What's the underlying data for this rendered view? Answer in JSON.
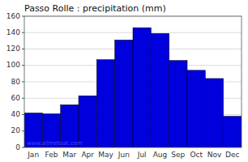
{
  "chart_data": {
    "type": "bar",
    "title": "Passo Rolle : precipitation (mm)",
    "categories": [
      "Jan",
      "Feb",
      "Mar",
      "Apr",
      "May",
      "Jun",
      "Jul",
      "Aug",
      "Sep",
      "Oct",
      "Nov",
      "Dec"
    ],
    "values": [
      42,
      41,
      52,
      63,
      107,
      131,
      146,
      139,
      106,
      94,
      84,
      38
    ],
    "color": "#0000dd",
    "ylim": [
      0,
      160
    ],
    "yticks": [
      0,
      20,
      40,
      60,
      80,
      100,
      120,
      140,
      160
    ],
    "grid": true,
    "annotation": "www.allmetsat.com"
  }
}
